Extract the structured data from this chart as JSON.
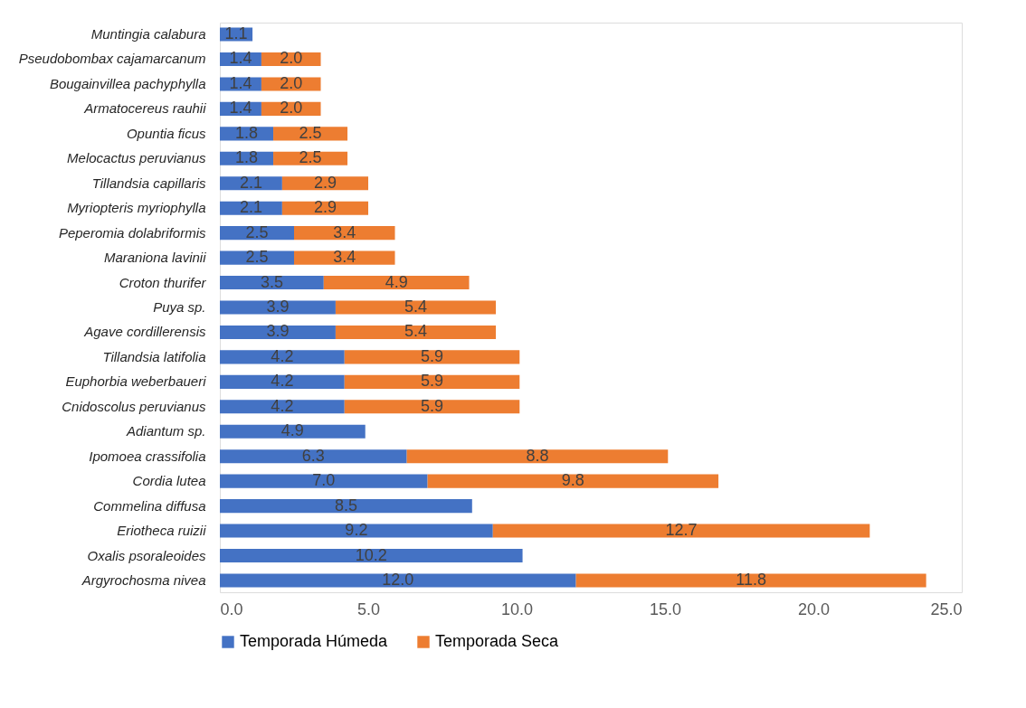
{
  "chart_data": {
    "type": "bar",
    "orientation": "horizontal",
    "stacked": true,
    "legend": "bottom",
    "grid": false,
    "categories": [
      "Muntingia calabura",
      "Pseudobombax cajamarcanum",
      "Bougainvillea pachyphylla",
      "Armatocereus rauhii",
      "Opuntia ficus",
      "Melocactus peruvianus",
      "Tillandsia capillaris",
      "Myriopteris myriophylla",
      "Peperomia dolabriformis",
      "Maraniona lavinii",
      "Croton thurifer",
      "Puya sp.",
      "Agave cordillerensis",
      "Tillandsia latifolia",
      "Euphorbia weberbaueri",
      "Cnidoscolus peruvianus",
      "Adiantum sp.",
      "Ipomoea crassifolia",
      "Cordia lutea",
      "Commelina diffusa",
      "Eriotheca ruizii",
      "Oxalis psoraleoides",
      "Argyrochosma nivea"
    ],
    "series": [
      {
        "name": "Temporada Húmeda",
        "color": "#4472c4",
        "values": [
          1.1,
          1.4,
          1.4,
          1.4,
          1.8,
          1.8,
          2.1,
          2.1,
          2.5,
          2.5,
          3.5,
          3.9,
          3.9,
          4.2,
          4.2,
          4.2,
          4.9,
          6.3,
          7.0,
          8.5,
          9.2,
          10.2,
          12.0
        ],
        "value_labels": [
          "1.1",
          "1.4",
          "1.4",
          "1.4",
          "1.8",
          "1.8",
          "2.1",
          "2.1",
          "2.5",
          "2.5",
          "3.5",
          "3.9",
          "3.9",
          "4.2",
          "4.2",
          "4.2",
          "4.9",
          "6.3",
          "7.0",
          "8.5",
          "9.2",
          "10.2",
          "12.0"
        ]
      },
      {
        "name": "Temporada Seca",
        "color": "#ed7d31",
        "values": [
          null,
          2.0,
          2.0,
          2.0,
          2.5,
          2.5,
          2.9,
          2.9,
          3.4,
          3.4,
          4.9,
          5.4,
          5.4,
          5.9,
          5.9,
          5.9,
          null,
          8.8,
          9.8,
          null,
          12.7,
          null,
          11.8
        ],
        "value_labels": [
          null,
          "2.0",
          "2.0",
          "2.0",
          "2.5",
          "2.5",
          "2.9",
          "2.9",
          "3.4",
          "3.4",
          "4.9",
          "5.4",
          "5.4",
          "5.9",
          "5.9",
          "5.9",
          null,
          "8.8",
          "9.8",
          null,
          "12.7",
          null,
          "11.8"
        ]
      }
    ],
    "xlim": [
      0,
      25
    ],
    "xticks": [
      {
        "value": 0,
        "label": "0.0"
      },
      {
        "value": 5,
        "label": "5.0"
      },
      {
        "value": 10,
        "label": "10.0"
      },
      {
        "value": 15,
        "label": "15.0"
      },
      {
        "value": 20,
        "label": "20.0"
      },
      {
        "value": 25,
        "label": "25.0"
      }
    ]
  }
}
